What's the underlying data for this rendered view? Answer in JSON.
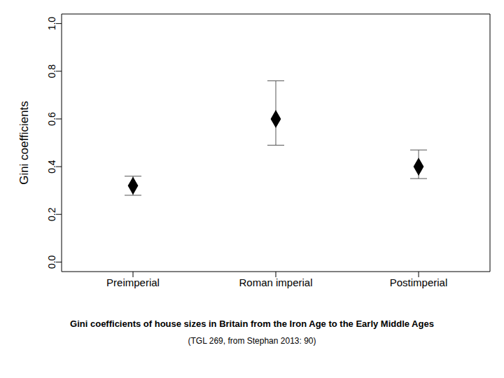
{
  "chart_data": {
    "type": "scatter",
    "title": "Gini coefficients of house sizes in Britain from the Iron Age to the Early Middle Ages",
    "subtitle": "(TGL 269, from Stephan 2013: 90)",
    "y_label": "Gini coefficients",
    "categories": [
      "Preimperial",
      "Roman imperial",
      "Postimperial"
    ],
    "values": [
      0.32,
      0.6,
      0.4
    ],
    "lower": [
      0.28,
      0.49,
      0.35
    ],
    "upper": [
      0.36,
      0.76,
      0.47
    ],
    "color": "#000000",
    "marker": "diamond",
    "ylim": [
      -0.04,
      1.04
    ],
    "yticks": [
      {
        "value": 0,
        "label": "0.0"
      },
      0.2,
      0.4,
      0.6,
      0.8,
      {
        "value": 1,
        "label": "1.0"
      }
    ]
  }
}
